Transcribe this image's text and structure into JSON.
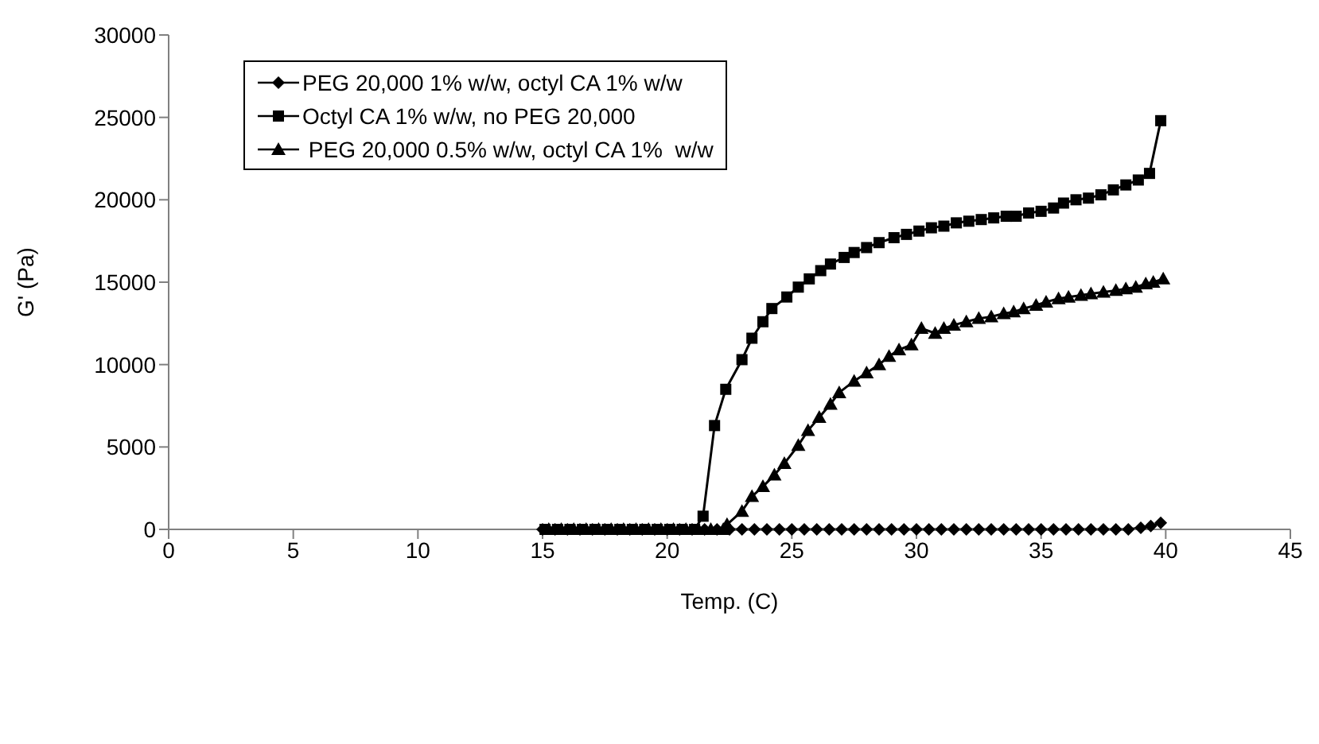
{
  "chart_data": {
    "type": "line",
    "xlabel": "Temp. (C)",
    "ylabel": "G' (Pa)",
    "xlim": [
      0,
      45
    ],
    "xticks": [
      0,
      5,
      10,
      15,
      20,
      25,
      30,
      35,
      40,
      45
    ],
    "ylim": [
      0,
      30000
    ],
    "yticks": [
      0,
      5000,
      10000,
      15000,
      20000,
      25000,
      30000
    ],
    "grid": false,
    "legend": "top left",
    "series": [
      {
        "name": "PEG 20,000 1% w/w, octyl CA 1% w/w",
        "color": "#000000",
        "marker": "diamond",
        "x": [
          15,
          15.5,
          16,
          16.5,
          17,
          17.5,
          18,
          18.5,
          19,
          19.5,
          20,
          20.5,
          21,
          21.5,
          22,
          22.5,
          23,
          23.5,
          24,
          24.5,
          25,
          25.5,
          26,
          26.5,
          27,
          27.5,
          28,
          28.5,
          29,
          29.5,
          30,
          30.5,
          31,
          31.5,
          32,
          32.5,
          33,
          33.5,
          34,
          34.5,
          35,
          35.5,
          36,
          36.5,
          37,
          37.5,
          38,
          38.5,
          39,
          39.4,
          39.8
        ],
        "values": [
          0,
          0,
          0,
          0,
          0,
          0,
          0,
          0,
          0,
          0,
          0,
          0,
          0,
          0,
          0,
          0,
          0,
          0,
          0,
          0,
          0,
          0,
          0,
          0,
          0,
          0,
          0,
          0,
          0,
          0,
          0,
          0,
          0,
          0,
          0,
          0,
          0,
          0,
          0,
          0,
          0,
          0,
          0,
          0,
          0,
          0,
          0,
          0,
          100,
          200,
          400
        ]
      },
      {
        "name": "Octyl CA 1% w/w, no PEG 20,000",
        "color": "#000000",
        "marker": "square",
        "x": [
          15.1,
          15.6,
          16.1,
          16.6,
          17.1,
          17.6,
          18.1,
          18.6,
          19.1,
          19.6,
          20.1,
          20.6,
          21.1,
          21.44,
          21.9,
          22.35,
          23.0,
          23.4,
          23.84,
          24.2,
          24.8,
          25.26,
          25.7,
          26.16,
          26.55,
          27.1,
          27.5,
          28,
          28.5,
          29.1,
          29.6,
          30.1,
          30.6,
          31.1,
          31.6,
          32.1,
          32.6,
          33.1,
          33.6,
          34,
          34.5,
          35,
          35.5,
          35.9,
          36.4,
          36.9,
          37.4,
          37.9,
          38.4,
          38.9,
          39.35,
          39.8
        ],
        "values": [
          0,
          0,
          0,
          0,
          0,
          0,
          0,
          0,
          0,
          0,
          0,
          0,
          0,
          800,
          6300,
          8500,
          10300,
          11600,
          12600,
          13400,
          14100,
          14700,
          15200,
          15700,
          16100,
          16500,
          16800,
          17100,
          17400,
          17700,
          17900,
          18100,
          18300,
          18400,
          18600,
          18700,
          18800,
          18900,
          19000,
          19000,
          19200,
          19300,
          19500,
          19800,
          20000,
          20100,
          20300,
          20600,
          20900,
          21200,
          21600,
          24800
        ]
      },
      {
        "name": " PEG 20,000 0.5% w/w, octyl CA 1%  w/w",
        "color": "#000000",
        "marker": "triangle",
        "x": [
          15.25,
          15.75,
          16.25,
          16.75,
          17.25,
          17.75,
          18.25,
          18.75,
          19.25,
          19.75,
          20.25,
          20.75,
          21.25,
          21.75,
          22.25,
          22.4,
          23.0,
          23.4,
          23.84,
          24.3,
          24.7,
          25.26,
          25.65,
          26.1,
          26.55,
          26.9,
          27.5,
          28.0,
          28.5,
          28.9,
          29.3,
          29.8,
          30.2,
          30.75,
          31.1,
          31.5,
          32.0,
          32.5,
          33.0,
          33.5,
          33.9,
          34.3,
          34.8,
          35.2,
          35.7,
          36.1,
          36.6,
          37.0,
          37.5,
          38.0,
          38.4,
          38.8,
          39.2,
          39.5,
          39.9
        ],
        "values": [
          0,
          0,
          0,
          0,
          0,
          0,
          0,
          0,
          0,
          0,
          0,
          0,
          0,
          0,
          0,
          300,
          1100,
          2000,
          2600,
          3300,
          4000,
          5100,
          6000,
          6800,
          7600,
          8300,
          9000,
          9500,
          10000,
          10500,
          10900,
          11200,
          12200,
          11900,
          12200,
          12400,
          12600,
          12800,
          12900,
          13100,
          13200,
          13400,
          13600,
          13800,
          14000,
          14100,
          14200,
          14300,
          14400,
          14500,
          14600,
          14700,
          14900,
          15000,
          15200
        ]
      }
    ]
  }
}
